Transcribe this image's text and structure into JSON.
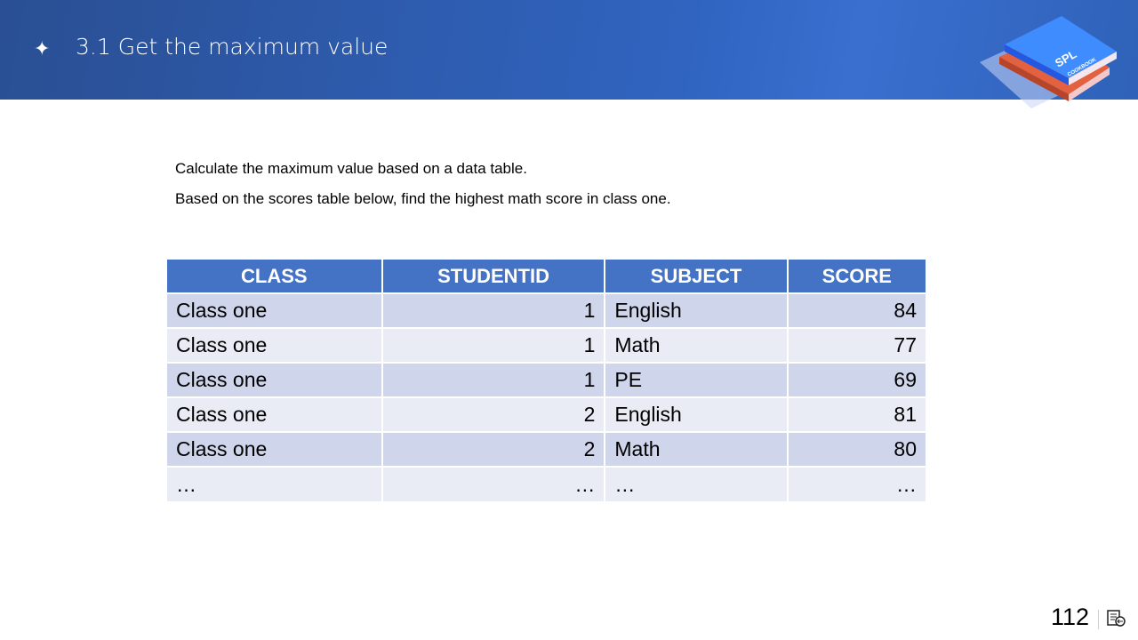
{
  "header": {
    "title": "3.1 Get the maximum value",
    "bullet_icon": "sparkle-icon",
    "logo_text": "SPL",
    "logo_subtext": "COOKBOOK"
  },
  "intro": [
    "Calculate the maximum value based on a data table.",
    "Based on the scores table below, find the highest math score in class one."
  ],
  "table": {
    "columns": [
      "CLASS",
      "STUDENTID",
      "SUBJECT",
      "SCORE"
    ],
    "rows": [
      [
        "Class one",
        "1",
        "English",
        "84"
      ],
      [
        "Class one",
        "1",
        "Math",
        "77"
      ],
      [
        "Class one",
        "1",
        "PE",
        "69"
      ],
      [
        "Class one",
        "2",
        "English",
        "81"
      ],
      [
        "Class one",
        "2",
        "Math",
        "80"
      ],
      [
        "…",
        "…",
        "…",
        "…"
      ]
    ]
  },
  "footer": {
    "page_number": "112",
    "notes_icon": "notes-icon"
  },
  "colors": {
    "header": "#2f5fb3",
    "table_header": "#4472c4",
    "row_odd": "#cfd5ea",
    "row_even": "#e9ebf5"
  }
}
